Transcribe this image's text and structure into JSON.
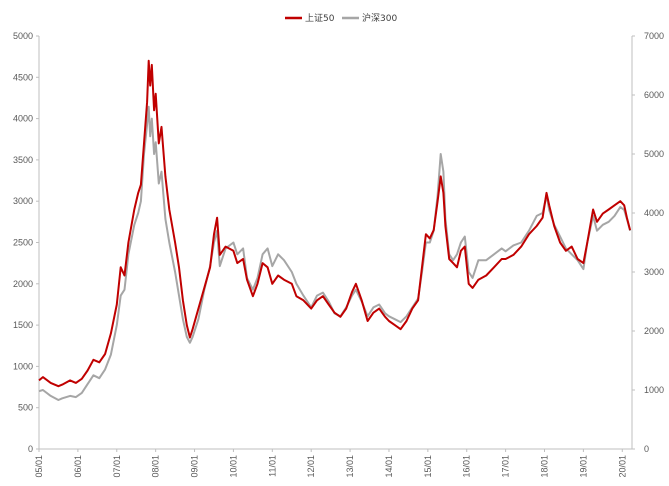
{
  "chart_data": {
    "type": "line",
    "legend_position": "top-center",
    "grid": false,
    "x_ticks": [
      "05/01",
      "06/01",
      "07/01",
      "08/01",
      "09/01",
      "10/01",
      "11/01",
      "12/01",
      "13/01",
      "14/01",
      "15/01",
      "16/01",
      "17/01",
      "18/01",
      "19/01",
      "20/01"
    ],
    "y_left": {
      "min": 0,
      "max": 5000,
      "ticks": [
        0,
        500,
        1000,
        1500,
        2000,
        2500,
        3000,
        3500,
        4000,
        4500,
        5000
      ]
    },
    "y_right": {
      "min": 0,
      "max": 7000,
      "ticks": [
        0,
        1000,
        2000,
        3000,
        4000,
        5000,
        6000,
        7000
      ]
    },
    "x_start": 2005.0,
    "x_end": 2020.25,
    "series": [
      {
        "name": "上证50",
        "axis": "left",
        "color": "#c00000",
        "points": [
          [
            2005.0,
            830
          ],
          [
            2005.1,
            870
          ],
          [
            2005.3,
            800
          ],
          [
            2005.5,
            760
          ],
          [
            2005.6,
            780
          ],
          [
            2005.8,
            830
          ],
          [
            2005.95,
            800
          ],
          [
            2006.1,
            850
          ],
          [
            2006.25,
            950
          ],
          [
            2006.4,
            1080
          ],
          [
            2006.55,
            1050
          ],
          [
            2006.7,
            1150
          ],
          [
            2006.85,
            1400
          ],
          [
            2007.0,
            1750
          ],
          [
            2007.1,
            2200
          ],
          [
            2007.2,
            2100
          ],
          [
            2007.3,
            2500
          ],
          [
            2007.45,
            2900
          ],
          [
            2007.55,
            3100
          ],
          [
            2007.62,
            3200
          ],
          [
            2007.7,
            3700
          ],
          [
            2007.78,
            4200
          ],
          [
            2007.82,
            4700
          ],
          [
            2007.86,
            4400
          ],
          [
            2007.9,
            4650
          ],
          [
            2007.96,
            4100
          ],
          [
            2008.0,
            4300
          ],
          [
            2008.08,
            3700
          ],
          [
            2008.15,
            3900
          ],
          [
            2008.25,
            3300
          ],
          [
            2008.35,
            2900
          ],
          [
            2008.5,
            2500
          ],
          [
            2008.6,
            2200
          ],
          [
            2008.7,
            1800
          ],
          [
            2008.8,
            1500
          ],
          [
            2008.88,
            1350
          ],
          [
            2008.95,
            1450
          ],
          [
            2009.1,
            1700
          ],
          [
            2009.25,
            1950
          ],
          [
            2009.4,
            2200
          ],
          [
            2009.5,
            2600
          ],
          [
            2009.58,
            2800
          ],
          [
            2009.65,
            2350
          ],
          [
            2009.8,
            2450
          ],
          [
            2010.0,
            2400
          ],
          [
            2010.1,
            2250
          ],
          [
            2010.25,
            2300
          ],
          [
            2010.35,
            2050
          ],
          [
            2010.5,
            1850
          ],
          [
            2010.62,
            2000
          ],
          [
            2010.75,
            2250
          ],
          [
            2010.88,
            2200
          ],
          [
            2011.0,
            2000
          ],
          [
            2011.15,
            2100
          ],
          [
            2011.3,
            2050
          ],
          [
            2011.5,
            2000
          ],
          [
            2011.62,
            1850
          ],
          [
            2011.8,
            1800
          ],
          [
            2012.0,
            1700
          ],
          [
            2012.15,
            1800
          ],
          [
            2012.3,
            1850
          ],
          [
            2012.45,
            1750
          ],
          [
            2012.6,
            1650
          ],
          [
            2012.75,
            1600
          ],
          [
            2012.9,
            1700
          ],
          [
            2013.05,
            1900
          ],
          [
            2013.15,
            2000
          ],
          [
            2013.3,
            1800
          ],
          [
            2013.45,
            1550
          ],
          [
            2013.6,
            1650
          ],
          [
            2013.75,
            1700
          ],
          [
            2013.9,
            1600
          ],
          [
            2014.0,
            1550
          ],
          [
            2014.15,
            1500
          ],
          [
            2014.3,
            1450
          ],
          [
            2014.45,
            1550
          ],
          [
            2014.6,
            1700
          ],
          [
            2014.75,
            1800
          ],
          [
            2014.85,
            2200
          ],
          [
            2014.95,
            2600
          ],
          [
            2015.05,
            2550
          ],
          [
            2015.15,
            2650
          ],
          [
            2015.25,
            3000
          ],
          [
            2015.33,
            3300
          ],
          [
            2015.4,
            3100
          ],
          [
            2015.45,
            2700
          ],
          [
            2015.55,
            2300
          ],
          [
            2015.65,
            2250
          ],
          [
            2015.75,
            2200
          ],
          [
            2015.85,
            2400
          ],
          [
            2015.95,
            2450
          ],
          [
            2016.05,
            2000
          ],
          [
            2016.15,
            1950
          ],
          [
            2016.3,
            2050
          ],
          [
            2016.5,
            2100
          ],
          [
            2016.7,
            2200
          ],
          [
            2016.9,
            2300
          ],
          [
            2017.0,
            2300
          ],
          [
            2017.2,
            2350
          ],
          [
            2017.4,
            2450
          ],
          [
            2017.6,
            2600
          ],
          [
            2017.8,
            2700
          ],
          [
            2017.95,
            2800
          ],
          [
            2018.05,
            3100
          ],
          [
            2018.12,
            2950
          ],
          [
            2018.25,
            2700
          ],
          [
            2018.4,
            2500
          ],
          [
            2018.55,
            2400
          ],
          [
            2018.7,
            2450
          ],
          [
            2018.85,
            2300
          ],
          [
            2019.0,
            2250
          ],
          [
            2019.1,
            2500
          ],
          [
            2019.25,
            2900
          ],
          [
            2019.35,
            2750
          ],
          [
            2019.5,
            2850
          ],
          [
            2019.65,
            2900
          ],
          [
            2019.8,
            2950
          ],
          [
            2019.95,
            3000
          ],
          [
            2020.05,
            2950
          ],
          [
            2020.12,
            2800
          ],
          [
            2020.2,
            2650
          ]
        ]
      },
      {
        "name": "沪深300",
        "axis": "right",
        "color": "#a6a6a6",
        "points": [
          [
            2005.0,
            980
          ],
          [
            2005.1,
            1000
          ],
          [
            2005.3,
            900
          ],
          [
            2005.5,
            830
          ],
          [
            2005.6,
            860
          ],
          [
            2005.8,
            900
          ],
          [
            2005.95,
            880
          ],
          [
            2006.1,
            950
          ],
          [
            2006.25,
            1100
          ],
          [
            2006.4,
            1250
          ],
          [
            2006.55,
            1200
          ],
          [
            2006.7,
            1350
          ],
          [
            2006.85,
            1600
          ],
          [
            2007.0,
            2100
          ],
          [
            2007.1,
            2600
          ],
          [
            2007.2,
            2700
          ],
          [
            2007.3,
            3300
          ],
          [
            2007.45,
            3800
          ],
          [
            2007.55,
            4000
          ],
          [
            2007.62,
            4200
          ],
          [
            2007.7,
            5000
          ],
          [
            2007.78,
            5500
          ],
          [
            2007.82,
            5800
          ],
          [
            2007.86,
            5300
          ],
          [
            2007.9,
            5600
          ],
          [
            2007.96,
            5000
          ],
          [
            2008.0,
            5200
          ],
          [
            2008.08,
            4500
          ],
          [
            2008.15,
            4700
          ],
          [
            2008.25,
            3900
          ],
          [
            2008.35,
            3500
          ],
          [
            2008.5,
            3000
          ],
          [
            2008.6,
            2600
          ],
          [
            2008.7,
            2200
          ],
          [
            2008.8,
            1900
          ],
          [
            2008.88,
            1800
          ],
          [
            2008.95,
            1900
          ],
          [
            2009.1,
            2200
          ],
          [
            2009.25,
            2700
          ],
          [
            2009.4,
            3100
          ],
          [
            2009.5,
            3500
          ],
          [
            2009.58,
            3700
          ],
          [
            2009.65,
            3100
          ],
          [
            2009.8,
            3400
          ],
          [
            2010.0,
            3500
          ],
          [
            2010.1,
            3300
          ],
          [
            2010.25,
            3400
          ],
          [
            2010.35,
            2900
          ],
          [
            2010.5,
            2700
          ],
          [
            2010.62,
            2900
          ],
          [
            2010.75,
            3300
          ],
          [
            2010.88,
            3400
          ],
          [
            2011.0,
            3100
          ],
          [
            2011.15,
            3300
          ],
          [
            2011.3,
            3200
          ],
          [
            2011.5,
            3000
          ],
          [
            2011.62,
            2800
          ],
          [
            2011.8,
            2600
          ],
          [
            2012.0,
            2400
          ],
          [
            2012.15,
            2600
          ],
          [
            2012.3,
            2650
          ],
          [
            2012.45,
            2500
          ],
          [
            2012.6,
            2300
          ],
          [
            2012.75,
            2250
          ],
          [
            2012.9,
            2400
          ],
          [
            2013.05,
            2600
          ],
          [
            2013.15,
            2700
          ],
          [
            2013.3,
            2500
          ],
          [
            2013.45,
            2250
          ],
          [
            2013.6,
            2400
          ],
          [
            2013.75,
            2450
          ],
          [
            2013.9,
            2300
          ],
          [
            2014.0,
            2250
          ],
          [
            2014.15,
            2200
          ],
          [
            2014.3,
            2150
          ],
          [
            2014.45,
            2250
          ],
          [
            2014.6,
            2400
          ],
          [
            2014.75,
            2550
          ],
          [
            2014.85,
            3000
          ],
          [
            2014.95,
            3500
          ],
          [
            2015.05,
            3500
          ],
          [
            2015.15,
            3700
          ],
          [
            2015.25,
            4300
          ],
          [
            2015.33,
            5000
          ],
          [
            2015.4,
            4700
          ],
          [
            2015.45,
            3900
          ],
          [
            2015.55,
            3300
          ],
          [
            2015.65,
            3200
          ],
          [
            2015.75,
            3300
          ],
          [
            2015.85,
            3500
          ],
          [
            2015.95,
            3600
          ],
          [
            2016.05,
            3000
          ],
          [
            2016.15,
            2900
          ],
          [
            2016.3,
            3200
          ],
          [
            2016.5,
            3200
          ],
          [
            2016.7,
            3300
          ],
          [
            2016.9,
            3400
          ],
          [
            2017.0,
            3350
          ],
          [
            2017.2,
            3450
          ],
          [
            2017.4,
            3500
          ],
          [
            2017.6,
            3700
          ],
          [
            2017.8,
            3950
          ],
          [
            2017.95,
            4000
          ],
          [
            2018.05,
            4300
          ],
          [
            2018.12,
            4050
          ],
          [
            2018.25,
            3800
          ],
          [
            2018.4,
            3600
          ],
          [
            2018.55,
            3400
          ],
          [
            2018.7,
            3300
          ],
          [
            2018.85,
            3200
          ],
          [
            2019.0,
            3050
          ],
          [
            2019.1,
            3500
          ],
          [
            2019.25,
            3950
          ],
          [
            2019.35,
            3700
          ],
          [
            2019.5,
            3800
          ],
          [
            2019.65,
            3850
          ],
          [
            2019.8,
            3950
          ],
          [
            2019.95,
            4100
          ],
          [
            2020.05,
            4050
          ],
          [
            2020.12,
            3900
          ],
          [
            2020.2,
            3700
          ]
        ]
      }
    ]
  }
}
